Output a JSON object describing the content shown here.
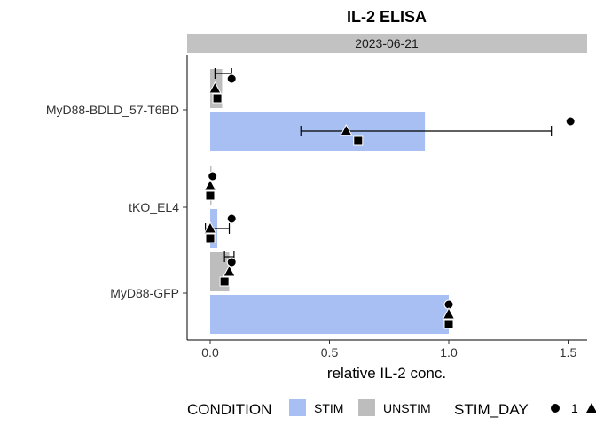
{
  "chart_data": {
    "type": "bar",
    "orientation": "horizontal",
    "title": "IL-2 ELISA",
    "facet": "2023-06-21",
    "xlabel": "relative IL-2 conc.",
    "ylabel": "",
    "xlim": [
      -0.1,
      1.6
    ],
    "xticks": [
      0.0,
      0.5,
      1.0,
      1.5
    ],
    "xtick_labels": [
      "0.0",
      "0.5",
      "1.0",
      "1.5"
    ],
    "categories": [
      "MyD88-BDLD_57-T6BD",
      "tKO_EL4",
      "MyD88-GFP"
    ],
    "series": [
      {
        "name": "STIM",
        "color": "#a8bff3",
        "values": [
          0.9,
          0.03,
          1.0
        ],
        "error_low": [
          0.38,
          -0.02,
          1.0
        ],
        "error_high": [
          1.43,
          0.08,
          1.0
        ],
        "points": [
          {
            "stim_day": "1",
            "values": [
              1.51,
              0.09,
              1.0
            ]
          },
          {
            "stim_day": "2",
            "values": [
              0.57,
              0.0,
              1.0
            ]
          },
          {
            "stim_day": "3",
            "values": [
              0.62,
              0.0,
              1.0
            ]
          }
        ]
      },
      {
        "name": "UNSTIM",
        "color": "#bdbdbd",
        "values": [
          0.05,
          0.0,
          0.08
        ],
        "error_low": [
          0.02,
          0.0,
          0.06
        ],
        "error_high": [
          0.09,
          0.0,
          0.1
        ],
        "points": [
          {
            "stim_day": "1",
            "values": [
              0.09,
              0.01,
              0.09
            ]
          },
          {
            "stim_day": "2",
            "values": [
              0.02,
              0.0,
              0.08
            ]
          },
          {
            "stim_day": "3",
            "values": [
              0.03,
              0.0,
              0.06
            ]
          }
        ]
      }
    ],
    "legend": {
      "position": "bottom",
      "condition_title": "CONDITION",
      "condition_items": [
        {
          "label": "STIM",
          "color": "#a8bff3"
        },
        {
          "label": "UNSTIM",
          "color": "#bdbdbd"
        }
      ],
      "stim_day_title": "STIM_DAY",
      "stim_day_items": [
        {
          "label": "1",
          "shape": "circle"
        }
      ]
    },
    "grid": false
  }
}
